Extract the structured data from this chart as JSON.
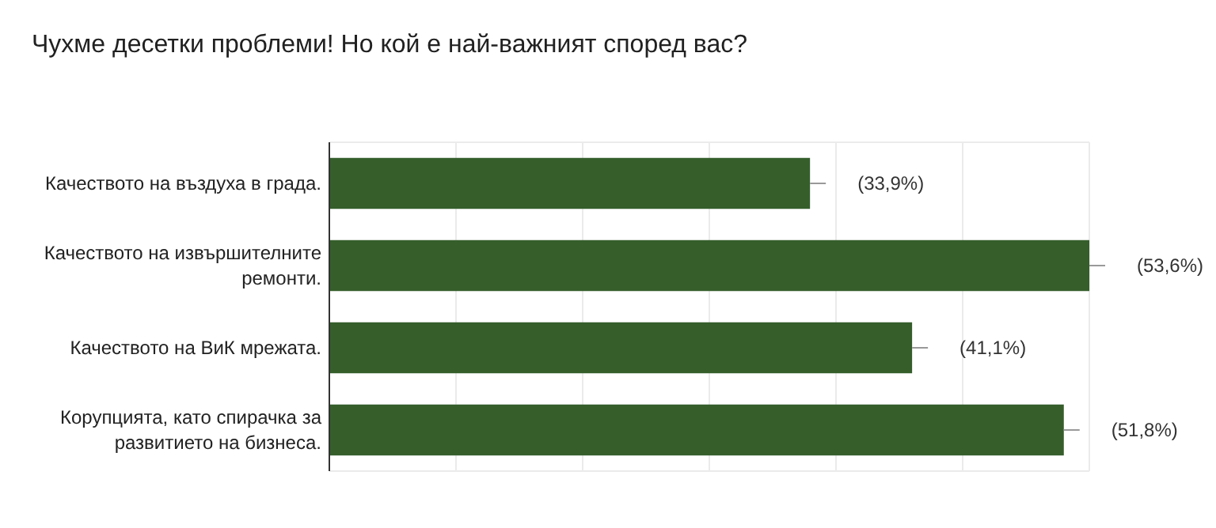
{
  "chart_data": {
    "type": "bar",
    "orientation": "horizontal",
    "title": "Чухме десетки проблеми! Но кой е най-важният според вас?",
    "categories": [
      "Качеството на въздуха в града.",
      "Качеството на извършителните ремонти.",
      "Качеството на ВиК мрежата.",
      "Корупцията, като спирачка за развитието на бизнеса."
    ],
    "values": [
      33.9,
      53.6,
      41.1,
      51.8
    ],
    "value_labels": [
      "(33,9%)",
      "(53,6%)",
      "(41,1%)",
      "(51,8%)"
    ],
    "color": "#355e2b",
    "grid": "x"
  }
}
